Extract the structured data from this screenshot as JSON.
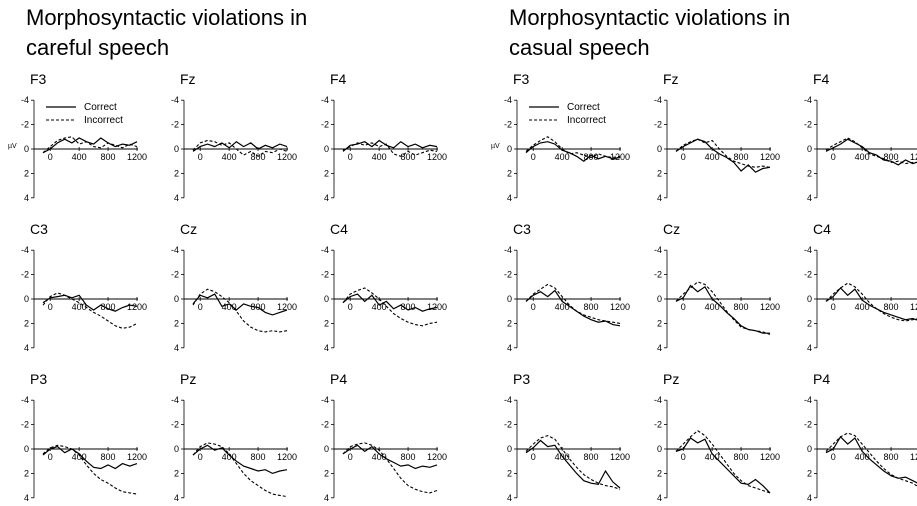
{
  "panels": [
    {
      "title_line1": "Morphosyntactic violations in",
      "title_line2": "careful speech"
    },
    {
      "title_line1": "Morphosyntactic violations in",
      "title_line2": "casual speech"
    }
  ],
  "legend": {
    "correct": "Correct",
    "incorrect": "Incorrect"
  },
  "unit_label": "µV",
  "chart_data": [
    {
      "type": "line",
      "title": "Morphosyntactic violations in careful speech",
      "x_ticks": [
        0,
        400,
        800,
        1200
      ],
      "y_ticks": [
        -4,
        -2,
        0,
        2,
        4
      ],
      "ylim": [
        -4,
        4
      ],
      "xlim": [
        -100,
        1200
      ],
      "y_inverted": true,
      "x": [
        -100,
        0,
        100,
        200,
        300,
        400,
        500,
        600,
        700,
        800,
        900,
        1000,
        1100,
        1200
      ],
      "subplots": [
        {
          "electrode": "F3",
          "correct": [
            0.3,
            0,
            -0.5,
            -0.8,
            -0.5,
            -0.9,
            -0.6,
            -0.4,
            -0.9,
            -0.5,
            -0.2,
            -0.4,
            -0.3,
            -0.6
          ],
          "incorrect": [
            0.3,
            -0.2,
            -0.7,
            -0.9,
            -1.0,
            -0.4,
            -0.6,
            -0.2,
            -0.1,
            -0.5,
            -0.3,
            -0.1,
            -0.4,
            -0.2
          ]
        },
        {
          "electrode": "Fz",
          "correct": [
            0.2,
            -0.2,
            -0.4,
            -0.2,
            -0.5,
            -0.1,
            -0.6,
            -0.2,
            -0.5,
            0.0,
            -0.3,
            -0.1,
            -0.4,
            -0.2
          ],
          "incorrect": [
            0.1,
            -0.5,
            -0.7,
            -0.6,
            -0.3,
            -0.5,
            0.0,
            0.5,
            0.2,
            0.6,
            0.2,
            0.3,
            0.0,
            0.2
          ]
        },
        {
          "electrode": "F4",
          "correct": [
            0.2,
            -0.3,
            -0.4,
            -0.6,
            -0.2,
            -0.7,
            -0.3,
            -0.1,
            -0.6,
            -0.2,
            -0.4,
            -0.1,
            -0.3,
            -0.2
          ],
          "incorrect": [
            0.1,
            -0.2,
            -0.5,
            -0.3,
            -0.5,
            -0.2,
            -0.4,
            0.4,
            0.6,
            0.2,
            0.5,
            0.3,
            0.1,
            0.2
          ]
        },
        {
          "electrode": "C3",
          "correct": [
            0.3,
            -0.1,
            -0.2,
            -0.3,
            -0.1,
            -0.3,
            0.5,
            0.9,
            0.5,
            0.8,
            1.0,
            0.7,
            0.5,
            0.6
          ],
          "incorrect": [
            0.5,
            -0.2,
            -0.5,
            -0.3,
            0.0,
            0.3,
            0.7,
            1.1,
            1.4,
            1.8,
            2.2,
            2.4,
            2.3,
            2.0
          ]
        },
        {
          "electrode": "Cz",
          "correct": [
            0.4,
            -0.3,
            -0.1,
            -0.4,
            0.6,
            0.4,
            0.9,
            0.4,
            0.6,
            0.7,
            1.1,
            1.3,
            1.1,
            0.9
          ],
          "incorrect": [
            0.5,
            -0.4,
            -0.8,
            -0.6,
            -0.2,
            0.3,
            1.0,
            1.8,
            2.3,
            2.6,
            2.7,
            2.6,
            2.7,
            2.6
          ]
        },
        {
          "electrode": "C4",
          "correct": [
            0.3,
            -0.2,
            -0.4,
            0.2,
            -0.3,
            0.5,
            0.2,
            0.8,
            0.5,
            0.9,
            0.7,
            1.0,
            0.8,
            0.7
          ],
          "incorrect": [
            0.3,
            -0.4,
            -0.7,
            -0.9,
            -0.5,
            0.0,
            0.6,
            1.2,
            1.6,
            1.9,
            2.1,
            2.2,
            2.0,
            1.9
          ]
        },
        {
          "electrode": "P3",
          "correct": [
            0.5,
            0.0,
            -0.2,
            0.3,
            0.0,
            0.4,
            1.0,
            1.5,
            1.6,
            1.3,
            1.6,
            1.2,
            1.4,
            1.2
          ],
          "incorrect": [
            0.4,
            -0.1,
            -0.3,
            -0.2,
            0.0,
            0.5,
            1.3,
            2.0,
            2.5,
            2.8,
            3.2,
            3.5,
            3.6,
            3.7
          ]
        },
        {
          "electrode": "Pz",
          "correct": [
            0.5,
            0.0,
            -0.3,
            0.1,
            -0.1,
            0.5,
            1.0,
            1.4,
            1.6,
            1.8,
            1.7,
            2.0,
            1.8,
            1.7
          ],
          "incorrect": [
            0.5,
            -0.2,
            -0.5,
            -0.4,
            -0.2,
            0.4,
            1.2,
            2.0,
            2.6,
            3.0,
            3.4,
            3.7,
            3.8,
            3.9
          ]
        },
        {
          "electrode": "P4",
          "correct": [
            0.4,
            0.0,
            -0.3,
            0.2,
            -0.2,
            0.4,
            0.8,
            1.1,
            1.4,
            1.3,
            1.6,
            1.4,
            1.5,
            1.3
          ],
          "incorrect": [
            0.4,
            -0.2,
            -0.4,
            -0.5,
            -0.3,
            0.1,
            0.8,
            1.6,
            2.4,
            3.0,
            3.3,
            3.5,
            3.6,
            3.4
          ]
        }
      ]
    },
    {
      "type": "line",
      "title": "Morphosyntactic violations in casual speech",
      "x_ticks": [
        0,
        400,
        800,
        1200
      ],
      "y_ticks": [
        -4,
        -2,
        0,
        2,
        4
      ],
      "ylim": [
        -4,
        4
      ],
      "xlim": [
        -100,
        1200
      ],
      "y_inverted": true,
      "x": [
        -100,
        0,
        100,
        200,
        300,
        400,
        500,
        600,
        700,
        800,
        900,
        1000,
        1100,
        1200
      ],
      "subplots": [
        {
          "electrode": "F3",
          "correct": [
            0.3,
            -0.2,
            -0.5,
            -0.6,
            -0.4,
            0.1,
            0.3,
            0.6,
            1.0,
            0.5,
            0.8,
            0.6,
            0.8,
            0.7
          ],
          "incorrect": [
            0.2,
            -0.3,
            -0.7,
            -1.0,
            -0.6,
            0.0,
            0.4,
            0.3,
            0.5,
            0.7,
            0.4,
            0.6,
            0.7,
            0.6
          ]
        },
        {
          "electrode": "Fz",
          "correct": [
            0.2,
            -0.2,
            -0.5,
            -0.8,
            -0.6,
            0.0,
            0.4,
            0.7,
            1.1,
            1.8,
            1.3,
            1.9,
            1.6,
            1.5
          ],
          "incorrect": [
            0.2,
            -0.3,
            -0.6,
            -0.8,
            -0.5,
            -0.7,
            0.0,
            0.6,
            1.0,
            1.2,
            1.4,
            1.5,
            1.4,
            1.5
          ]
        },
        {
          "electrode": "F4",
          "correct": [
            0.2,
            -0.1,
            -0.4,
            -0.8,
            -0.5,
            -0.2,
            0.3,
            0.5,
            0.9,
            1.0,
            1.3,
            0.9,
            1.2,
            1.0
          ],
          "incorrect": [
            0.1,
            -0.3,
            -0.6,
            -0.9,
            -0.6,
            -0.1,
            0.4,
            0.6,
            0.8,
            1.1,
            1.0,
            1.2,
            1.1,
            1.1
          ]
        },
        {
          "electrode": "C3",
          "correct": [
            0.2,
            -0.3,
            -0.6,
            -0.2,
            -0.7,
            0.2,
            0.6,
            1.0,
            1.4,
            1.7,
            1.9,
            1.8,
            2.1,
            2.2
          ],
          "incorrect": [
            0.2,
            -0.4,
            -0.8,
            -1.2,
            -0.9,
            -0.2,
            0.5,
            1.0,
            1.3,
            1.5,
            1.7,
            1.8,
            1.9,
            2.0
          ]
        },
        {
          "electrode": "Cz",
          "correct": [
            0.2,
            -0.1,
            -1.1,
            -0.6,
            -1.0,
            0.0,
            0.5,
            1.1,
            1.6,
            2.2,
            2.5,
            2.6,
            2.8,
            2.8
          ],
          "incorrect": [
            0.2,
            -0.4,
            -0.9,
            -1.4,
            -1.2,
            -0.6,
            0.2,
            1.0,
            1.7,
            2.3,
            2.5,
            2.6,
            2.7,
            2.9
          ]
        },
        {
          "electrode": "C4",
          "correct": [
            0.2,
            -0.2,
            -0.9,
            -0.3,
            -0.8,
            0.1,
            0.5,
            0.8,
            1.1,
            1.3,
            1.5,
            1.7,
            1.6,
            1.8
          ],
          "incorrect": [
            0.2,
            -0.4,
            -0.9,
            -1.3,
            -1.0,
            -0.4,
            0.3,
            0.8,
            1.2,
            1.5,
            1.7,
            1.8,
            1.7,
            1.6
          ]
        },
        {
          "electrode": "P3",
          "correct": [
            0.3,
            -0.1,
            -0.7,
            -0.2,
            -0.3,
            0.6,
            1.3,
            2.0,
            2.6,
            2.8,
            2.9,
            1.8,
            2.7,
            3.2
          ],
          "incorrect": [
            0.2,
            -0.4,
            -0.9,
            -1.1,
            -0.8,
            0.0,
            0.8,
            1.5,
            2.1,
            2.5,
            2.8,
            3.0,
            3.1,
            3.3
          ]
        },
        {
          "electrode": "Pz",
          "correct": [
            0.2,
            0.0,
            -0.9,
            -0.5,
            -0.8,
            0.4,
            1.0,
            1.6,
            2.2,
            2.8,
            2.9,
            2.5,
            3.0,
            3.6
          ],
          "incorrect": [
            0.2,
            -0.4,
            -1.0,
            -1.5,
            -1.1,
            -0.4,
            0.4,
            1.2,
            2.0,
            2.6,
            3.0,
            3.2,
            3.4,
            3.6
          ]
        },
        {
          "electrode": "P4",
          "correct": [
            0.3,
            0.0,
            -1.0,
            -0.4,
            -0.9,
            0.2,
            0.8,
            1.3,
            1.8,
            2.2,
            2.4,
            2.3,
            2.6,
            2.9
          ],
          "incorrect": [
            0.2,
            -0.4,
            -1.0,
            -1.3,
            -1.1,
            -0.4,
            0.3,
            1.0,
            1.6,
            2.1,
            2.4,
            2.6,
            2.8,
            3.2
          ]
        }
      ]
    }
  ]
}
